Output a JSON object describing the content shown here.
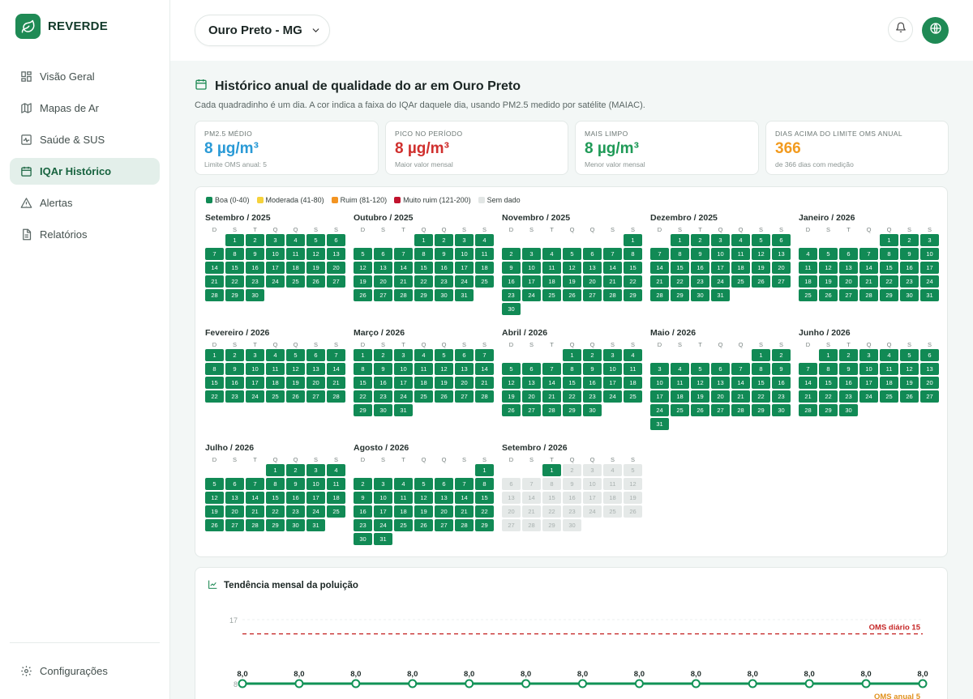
{
  "brand": {
    "name": "REVERDE"
  },
  "sidebar": {
    "items": [
      {
        "label": "Visão Geral",
        "icon": "grid-icon",
        "active": false
      },
      {
        "label": "Mapas de Ar",
        "icon": "map-icon",
        "active": false
      },
      {
        "label": "Saúde & SUS",
        "icon": "pulse-icon",
        "active": false
      },
      {
        "label": "IQAr Histórico",
        "icon": "calendar-icon",
        "active": true
      },
      {
        "label": "Alertas",
        "icon": "alert-triangle-icon",
        "active": false
      },
      {
        "label": "Relatórios",
        "icon": "file-icon",
        "active": false
      }
    ],
    "settings_label": "Configurações"
  },
  "header": {
    "location": "Ouro Preto - MG"
  },
  "main": {
    "title": "Histórico anual de qualidade do ar em Ouro Preto",
    "subtitle": "Cada quadradinho é um dia. A cor indica a faixa do IQAr daquele dia, usando PM2.5 medido por satélite (MAIAC)."
  },
  "stats": [
    {
      "label": "PM2.5 MÉDIO",
      "value": "8 µg/m³",
      "note": "Limite OMS anual: 5",
      "color": "#2a9ad6"
    },
    {
      "label": "PICO NO PERÍODO",
      "value": "8 µg/m³",
      "note": "Maior valor mensal",
      "color": "#d0302e"
    },
    {
      "label": "MAIS LIMPO",
      "value": "8 µg/m³",
      "note": "Menor valor mensal",
      "color": "#1f9a57"
    },
    {
      "label": "DIAS ACIMA DO LIMITE OMS ANUAL",
      "value": "366",
      "note": "de 366 dias com medição",
      "color": "#f29b1f"
    }
  ],
  "legend": [
    {
      "label": "Boa (0-40)",
      "color": "#118a55"
    },
    {
      "label": "Moderada (41-80)",
      "color": "#f6d23b"
    },
    {
      "label": "Ruim (81-120)",
      "color": "#f39422"
    },
    {
      "label": "Muito ruim (121-200)",
      "color": "#c1132e"
    },
    {
      "label": "Sem dado",
      "color": "#e2e6e5"
    }
  ],
  "weekdays": [
    "D",
    "S",
    "T",
    "Q",
    "Q",
    "S",
    "S"
  ],
  "months": [
    {
      "title": "Setembro / 2025",
      "offset": 1,
      "days": 30,
      "lastData": 30
    },
    {
      "title": "Outubro / 2025",
      "offset": 3,
      "days": 31,
      "lastData": 31
    },
    {
      "title": "Novembro / 2025",
      "offset": 6,
      "days": 30,
      "lastData": 30
    },
    {
      "title": "Dezembro / 2025",
      "offset": 1,
      "days": 31,
      "lastData": 31
    },
    {
      "title": "Janeiro / 2026",
      "offset": 4,
      "days": 31,
      "lastData": 31
    },
    {
      "title": "Fevereiro / 2026",
      "offset": 0,
      "days": 28,
      "lastData": 28
    },
    {
      "title": "Março / 2026",
      "offset": 0,
      "days": 31,
      "lastData": 31
    },
    {
      "title": "Abril / 2026",
      "offset": 3,
      "days": 30,
      "lastData": 30
    },
    {
      "title": "Maio / 2026",
      "offset": 5,
      "days": 31,
      "lastData": 31
    },
    {
      "title": "Junho / 2026",
      "offset": 1,
      "days": 30,
      "lastData": 30
    },
    {
      "title": "Julho / 2026",
      "offset": 3,
      "days": 31,
      "lastData": 31
    },
    {
      "title": "Agosto / 2026",
      "offset": 6,
      "days": 31,
      "lastData": 31
    },
    {
      "title": "Setembro / 2026",
      "offset": 2,
      "days": 30,
      "lastData": 1
    }
  ],
  "trend": {
    "title": "Tendência mensal da poluição",
    "chart_data": {
      "type": "line",
      "title": "Tendência mensal da poluição",
      "y_ticks": [
        8,
        17
      ],
      "ylim": [
        8,
        17
      ],
      "series": [
        {
          "name": "",
          "values": [
            8.0,
            8.0,
            8.0,
            8.0,
            8.0,
            8.0,
            8.0,
            8.0,
            8.0,
            8.0,
            8.0,
            8.0,
            8.0
          ]
        }
      ],
      "point_labels": [
        "8,0",
        "8,0",
        "8,0",
        "8,0",
        "8,0",
        "8,0",
        "8,0",
        "8,0",
        "8,0",
        "8,0",
        "8,0",
        "8,0",
        "8,0"
      ],
      "reference_lines": [
        {
          "label": "OMS diário 15",
          "value": 15,
          "color": "#c62828"
        },
        {
          "label": "OMS anual 5",
          "value": 5,
          "color": "#e0911d"
        }
      ]
    }
  },
  "colors": {
    "accent": "#1f8a55",
    "good": "#118a55",
    "nodata": "#e5e9e8"
  }
}
